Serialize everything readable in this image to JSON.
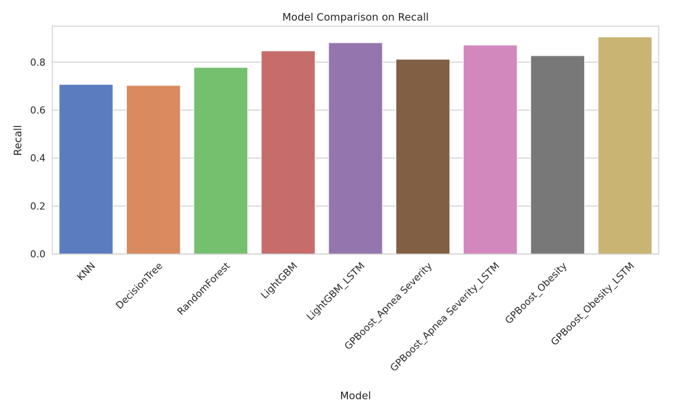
{
  "chart_data": {
    "type": "bar",
    "title": "Model Comparison on Recall",
    "xlabel": "Model",
    "ylabel": "Recall",
    "ylim": [
      0,
      0.95
    ],
    "yticks": [
      "0.0",
      "0.2",
      "0.4",
      "0.6",
      "0.8"
    ],
    "grid": true,
    "categories": [
      "KNN",
      "DecisionTree",
      "RandomForest",
      "LightGBM",
      "LightGBM_LSTM",
      "GPBoost_Apnea Severity",
      "GPBoost_Apnea Severity_LSTM",
      "GPBoost_Obesity",
      "GPBoost_Obesity_LSTM"
    ],
    "values": [
      0.707,
      0.703,
      0.778,
      0.847,
      0.881,
      0.812,
      0.871,
      0.827,
      0.905
    ],
    "colors": [
      "#5a7dc0",
      "#d98a5e",
      "#75c06f",
      "#c66d6c",
      "#9575ad",
      "#805f44",
      "#d388bd",
      "#787878",
      "#c9b473"
    ]
  }
}
